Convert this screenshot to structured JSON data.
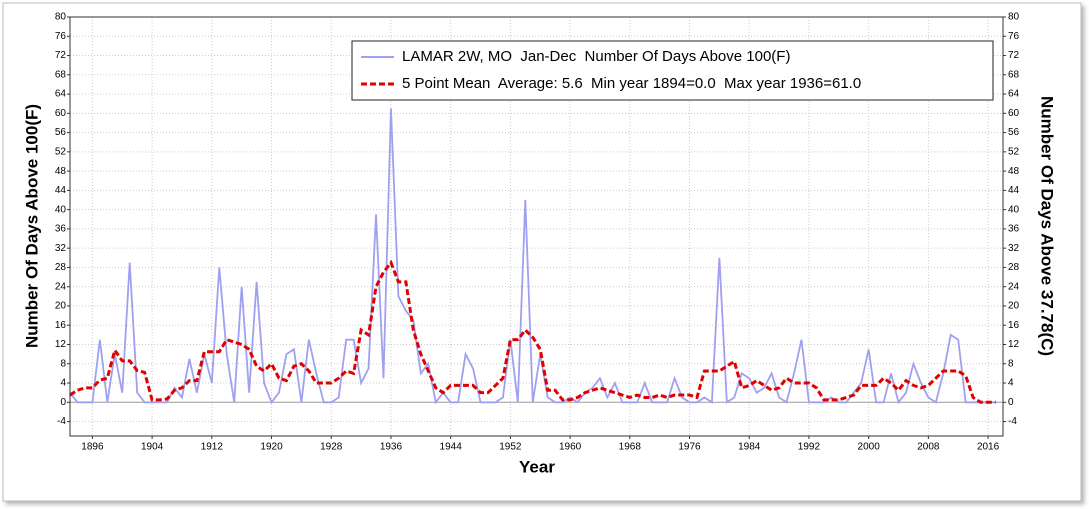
{
  "chart_data": {
    "type": "line",
    "ylabel": "Number Of Days Above 100(F)",
    "y2label": "Number Of Days Above 37.78(C)",
    "xlabel": "Year",
    "legend": "top-right",
    "grid": true,
    "x": [
      1893,
      1894,
      1895,
      1896,
      1897,
      1898,
      1899,
      1900,
      1901,
      1902,
      1903,
      1904,
      1905,
      1906,
      1907,
      1908,
      1909,
      1910,
      1911,
      1912,
      1913,
      1914,
      1915,
      1916,
      1917,
      1918,
      1919,
      1920,
      1921,
      1922,
      1923,
      1924,
      1925,
      1926,
      1927,
      1928,
      1929,
      1930,
      1931,
      1932,
      1933,
      1934,
      1935,
      1936,
      1937,
      1938,
      1939,
      1940,
      1941,
      1942,
      1943,
      1944,
      1945,
      1946,
      1947,
      1948,
      1949,
      1950,
      1951,
      1952,
      1953,
      1954,
      1955,
      1956,
      1957,
      1958,
      1959,
      1960,
      1961,
      1962,
      1963,
      1964,
      1965,
      1966,
      1967,
      1968,
      1969,
      1970,
      1971,
      1972,
      1973,
      1974,
      1975,
      1976,
      1977,
      1978,
      1979,
      1980,
      1981,
      1982,
      1983,
      1984,
      1985,
      1986,
      1987,
      1988,
      1989,
      1990,
      1991,
      1992,
      1993,
      1994,
      1995,
      1996,
      1997,
      1998,
      1999,
      2000,
      2001,
      2002,
      2003,
      2004,
      2005,
      2006,
      2007,
      2008,
      2009,
      2010,
      2011,
      2012,
      2013,
      2014,
      2015,
      2016,
      2017
    ],
    "series": [
      {
        "name": "LAMAR 2W, MO  Jan-Dec  Number Of Days Above 100(F)",
        "color": "#a0a0f0",
        "style": "solid",
        "values": [
          2,
          0,
          0,
          0,
          13,
          0,
          10,
          2,
          29,
          2,
          0,
          0,
          0,
          0,
          3,
          1,
          9,
          2,
          10,
          4,
          28,
          10,
          0,
          24,
          2,
          25,
          4,
          0,
          2,
          10,
          11,
          0,
          13,
          6,
          0,
          0,
          1,
          13,
          13,
          4,
          7,
          39,
          5,
          61,
          22,
          19,
          17,
          6,
          8,
          0,
          2,
          0,
          0,
          10,
          7,
          0,
          0,
          0,
          1,
          13,
          0,
          42,
          0,
          10,
          1,
          0,
          0,
          1,
          0,
          2,
          3,
          5,
          1,
          4,
          0,
          0,
          0,
          4,
          0,
          0,
          0,
          5,
          1,
          0,
          0,
          1,
          0,
          30,
          0,
          1,
          6,
          5,
          2,
          3,
          6,
          1,
          0,
          6,
          13,
          0,
          0,
          0,
          1,
          0,
          0,
          2,
          4,
          11,
          0,
          0,
          6,
          0,
          2,
          8,
          4,
          1,
          0,
          6,
          14,
          13,
          0,
          0,
          0,
          0,
          0
        ]
      },
      {
        "name": "5 Point Mean  Average: 5.6  Min year 1894=0.0  Max year 1936=61.0",
        "color": "#e00000",
        "style": "dashed",
        "values": [
          1.5,
          2.5,
          3,
          3,
          4.6,
          5,
          10.8,
          8.6,
          8.6,
          6.6,
          6.2,
          0.5,
          0.5,
          0.7,
          2.5,
          3,
          4.5,
          4.5,
          10.5,
          10.5,
          10.5,
          13,
          12.5,
          12,
          11,
          7.5,
          6.5,
          8,
          5,
          4.5,
          7.5,
          8,
          6.5,
          4,
          4,
          4,
          5,
          6.5,
          6,
          15,
          14,
          24,
          27,
          29,
          25,
          25,
          15,
          10,
          6.5,
          3,
          2,
          3.5,
          3.5,
          3.5,
          3.5,
          2,
          2,
          3.5,
          5,
          13,
          13,
          15,
          13.5,
          11,
          2.5,
          2.5,
          0.5,
          0.5,
          1,
          2,
          2.5,
          3,
          2.5,
          2,
          1.5,
          1,
          1.5,
          1,
          1,
          1.5,
          1,
          1.5,
          1.5,
          1.5,
          1,
          6.5,
          6.5,
          6.5,
          7.5,
          8.5,
          3,
          3.5,
          4.5,
          3.5,
          2.5,
          3,
          5,
          4,
          4,
          4,
          3,
          0.5,
          0.5,
          0.5,
          1,
          1.5,
          3.5,
          3.5,
          3.5,
          5,
          4,
          2.5,
          4.5,
          3.5,
          3,
          3.5,
          5,
          6.5,
          6.5,
          6.5,
          5.5,
          1,
          0,
          0,
          0
        ]
      }
    ],
    "xlim": [
      1893,
      2018
    ],
    "xticks": [
      1896,
      1904,
      1912,
      1920,
      1928,
      1936,
      1944,
      1952,
      1960,
      1968,
      1976,
      1984,
      1992,
      2000,
      2008,
      2016
    ],
    "ylim": [
      -7,
      80
    ],
    "yticks": [
      -4,
      0,
      4,
      8,
      12,
      16,
      20,
      24,
      28,
      32,
      36,
      40,
      44,
      48,
      52,
      56,
      60,
      64,
      68,
      72,
      76,
      80
    ],
    "y2lim": [
      -7,
      80
    ],
    "y2ticks": [
      -4,
      0,
      4,
      8,
      12,
      16,
      20,
      24,
      28,
      32,
      36,
      40,
      44,
      48,
      52,
      56,
      60,
      64,
      68,
      72,
      76,
      80
    ]
  }
}
